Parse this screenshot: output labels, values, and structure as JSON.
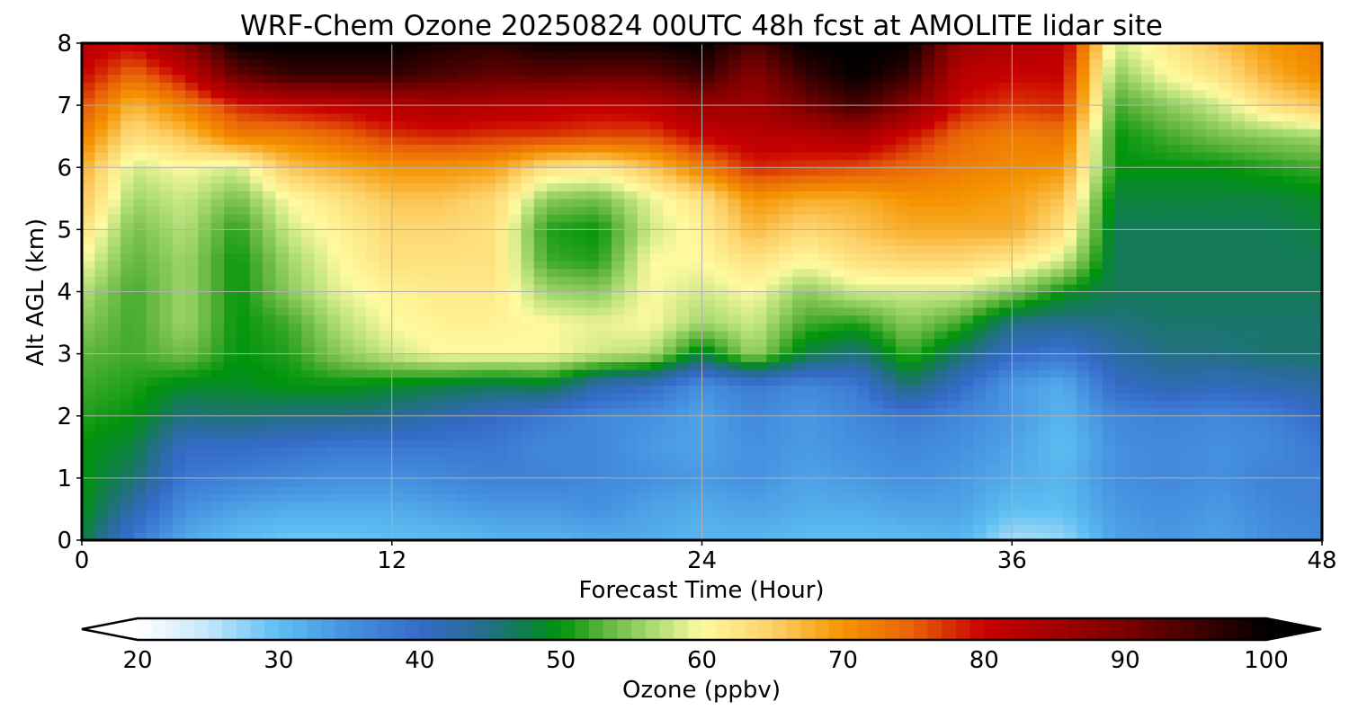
{
  "chart_data": {
    "type": "heatmap",
    "title": "WRF-Chem Ozone  20250824 00UTC 48h fcst at AMOLITE lidar site",
    "xlabel": "Forecast Time (Hour)",
    "ylabel": "Alt AGL (km)",
    "xlim": [
      0,
      48
    ],
    "ylim": [
      0,
      8
    ],
    "x_ticks": [
      "0",
      "12",
      "24",
      "36",
      "48"
    ],
    "y_ticks": [
      "0",
      "1",
      "2",
      "3",
      "4",
      "5",
      "6",
      "7",
      "8"
    ],
    "grid": true,
    "x": [
      0,
      2,
      4,
      6,
      8,
      10,
      12,
      14,
      16,
      18,
      20,
      22,
      24,
      26,
      28,
      30,
      32,
      34,
      36,
      38,
      40,
      42,
      44,
      46,
      48
    ],
    "y": [
      0,
      0.5,
      1,
      1.5,
      2,
      2.5,
      3,
      3.5,
      4,
      4.5,
      5,
      5.5,
      6,
      6.5,
      7,
      7.5,
      8
    ],
    "z": [
      [
        48,
        38,
        32,
        30,
        29,
        29,
        30,
        30,
        31,
        31,
        32,
        32,
        31,
        31,
        30,
        30,
        30,
        31,
        26,
        27,
        33,
        34,
        33,
        35,
        36
      ],
      [
        50,
        42,
        35,
        33,
        32,
        32,
        32,
        33,
        34,
        34,
        35,
        33,
        32,
        33,
        32,
        32,
        33,
        33,
        30,
        30,
        34,
        35,
        34,
        36,
        37
      ],
      [
        50,
        46,
        38,
        37,
        36,
        35,
        35,
        36,
        37,
        37,
        36,
        35,
        34,
        35,
        33,
        34,
        35,
        34,
        32,
        31,
        35,
        36,
        35,
        37,
        37
      ],
      [
        50,
        48,
        40,
        40,
        39,
        38,
        38,
        38,
        38,
        36,
        36,
        34,
        33,
        35,
        34,
        35,
        36,
        35,
        33,
        30,
        35,
        36,
        35,
        36,
        38
      ],
      [
        51,
        50,
        45,
        46,
        45,
        45,
        44,
        42,
        40,
        38,
        36,
        35,
        33,
        36,
        34,
        36,
        38,
        36,
        34,
        31,
        36,
        37,
        36,
        37,
        40
      ],
      [
        52,
        51,
        49,
        49,
        50,
        50,
        49,
        48,
        47,
        48,
        42,
        40,
        35,
        38,
        36,
        38,
        46,
        40,
        34,
        32,
        40,
        42,
        41,
        42,
        43
      ],
      [
        53,
        52,
        54,
        50,
        51,
        55,
        58,
        60,
        60,
        60,
        58,
        57,
        48,
        56,
        48,
        45,
        52,
        46,
        40,
        38,
        43,
        45,
        45,
        46,
        46
      ],
      [
        55,
        52,
        56,
        50,
        52,
        57,
        60,
        61,
        61,
        60,
        59,
        60,
        56,
        58,
        52,
        51,
        55,
        52,
        45,
        44,
        45,
        46,
        46,
        46,
        46
      ],
      [
        57,
        52,
        56,
        50,
        55,
        59,
        61,
        62,
        62,
        56,
        55,
        60,
        58,
        60,
        55,
        58,
        58,
        58,
        55,
        50,
        47,
        47,
        47,
        47,
        47
      ],
      [
        60,
        53,
        56,
        50,
        56,
        60,
        63,
        63,
        63,
        52,
        51,
        60,
        60,
        63,
        60,
        63,
        64,
        64,
        62,
        58,
        47,
        47,
        47,
        47,
        47
      ],
      [
        63,
        54,
        57,
        51,
        58,
        61,
        64,
        64,
        63,
        51,
        50,
        58,
        61,
        67,
        64,
        66,
        68,
        68,
        68,
        63,
        47,
        47,
        47,
        47,
        48
      ],
      [
        66,
        56,
        58,
        54,
        60,
        63,
        66,
        66,
        64,
        55,
        54,
        59,
        63,
        70,
        68,
        68,
        70,
        70,
        69,
        66,
        48,
        48,
        48,
        48,
        49
      ],
      [
        68,
        58,
        60,
        58,
        66,
        68,
        70,
        70,
        69,
        63,
        62,
        66,
        72,
        78,
        77,
        76,
        74,
        72,
        71,
        70,
        50,
        50,
        50,
        51,
        52
      ],
      [
        72,
        63,
        66,
        72,
        72,
        74,
        77,
        78,
        77,
        77,
        76,
        76,
        80,
        82,
        82,
        84,
        79,
        74,
        72,
        73,
        50,
        52,
        54,
        55,
        56
      ],
      [
        76,
        67,
        72,
        78,
        80,
        81,
        83,
        84,
        83,
        82,
        81,
        82,
        86,
        85,
        90,
        95,
        88,
        79,
        77,
        78,
        52,
        55,
        58,
        63,
        66
      ],
      [
        80,
        74,
        80,
        92,
        96,
        96,
        96,
        94,
        92,
        93,
        92,
        92,
        96,
        88,
        96,
        100,
        96,
        82,
        80,
        80,
        55,
        60,
        63,
        68,
        71
      ],
      [
        82,
        80,
        88,
        100,
        100,
        100,
        100,
        98,
        97,
        99,
        99,
        99,
        100,
        94,
        100,
        100,
        100,
        86,
        84,
        82,
        58,
        62,
        66,
        70,
        72
      ]
    ],
    "colorbar": {
      "label": "Ozone  (ppbv)",
      "ticks": [
        "20",
        "30",
        "40",
        "50",
        "60",
        "70",
        "80",
        "90",
        "100"
      ],
      "min": 20,
      "max": 100,
      "extend": "both"
    },
    "colormap": [
      [
        20,
        "#ffffff"
      ],
      [
        25,
        "#c4e6fb"
      ],
      [
        30,
        "#5dbff2"
      ],
      [
        35,
        "#4590df"
      ],
      [
        40,
        "#356bc8"
      ],
      [
        44,
        "#286c96"
      ],
      [
        47,
        "#147a58"
      ],
      [
        50,
        "#00940c"
      ],
      [
        53,
        "#5eb43c"
      ],
      [
        57,
        "#b6e07a"
      ],
      [
        60,
        "#fffaa0"
      ],
      [
        65,
        "#fdd068"
      ],
      [
        70,
        "#f59400"
      ],
      [
        75,
        "#e86008"
      ],
      [
        80,
        "#c80000"
      ],
      [
        85,
        "#a30000"
      ],
      [
        90,
        "#7a0000"
      ],
      [
        95,
        "#420000"
      ],
      [
        100,
        "#000000"
      ]
    ]
  }
}
